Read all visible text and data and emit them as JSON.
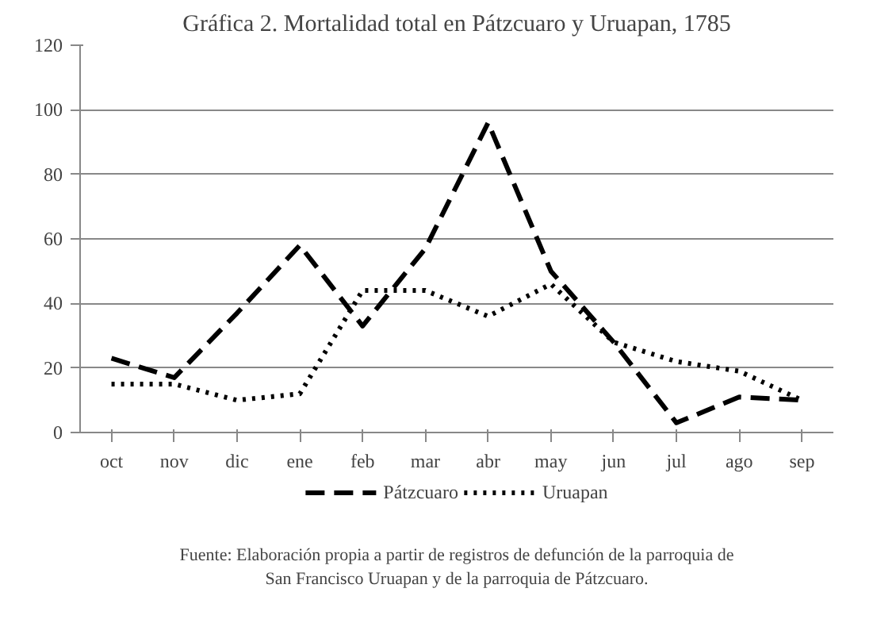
{
  "chart_data": {
    "type": "line",
    "title": "Gráfica 2. Mortalidad total en Pátzcuaro y Uruapan, 1785",
    "categories": [
      "oct",
      "nov",
      "dic",
      "ene",
      "feb",
      "mar",
      "abr",
      "may",
      "jun",
      "jul",
      "ago",
      "sep"
    ],
    "series": [
      {
        "name": "Pátzcuaro",
        "color": "#000000",
        "line_style": "dashed",
        "values": [
          23,
          17,
          37,
          58,
          33,
          57,
          96,
          50,
          28,
          3,
          11,
          10
        ]
      },
      {
        "name": "Uruapan",
        "color": "#000000",
        "line_style": "dotted",
        "values": [
          15,
          15,
          10,
          12,
          44,
          44,
          36,
          46,
          28,
          22,
          19,
          10
        ]
      }
    ],
    "ylim": [
      0,
      120
    ],
    "yticks": [
      0,
      20,
      40,
      60,
      80,
      100,
      120
    ],
    "grid": "y",
    "legend": "bottom",
    "marker": "none",
    "annotations": [
      "Fuente: Elaboración propia a partir de registros de defunción de la parroquia de San Francisco Uruapan y de la parroquia de Pátzcuaro."
    ]
  }
}
